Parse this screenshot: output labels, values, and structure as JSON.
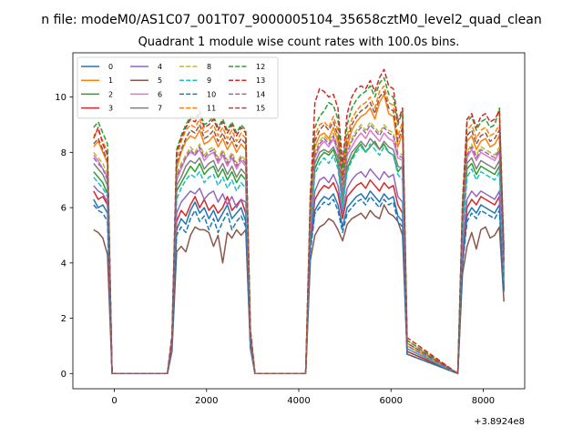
{
  "chart_data": {
    "type": "line",
    "suptitle": "n file: modeM0/AS1C07_001T07_9000005104_35658cztM0_level2_quad_clean",
    "title": "Quadrant 1 module wise count rates with 100.0s bins.",
    "xlabel": "",
    "ylabel": "",
    "x_offset_label": "+3.8924e8",
    "xlim": [
      -900,
      8900
    ],
    "ylim": [
      -0.55,
      11.6
    ],
    "x_ticks": [
      0,
      2000,
      4000,
      6000,
      8000
    ],
    "y_ticks": [
      0,
      2,
      4,
      6,
      8,
      10
    ],
    "grid": false,
    "legend": {
      "position": "top-left",
      "columns": 4
    },
    "x": [
      -450,
      -350,
      -250,
      -150,
      -50,
      1150,
      1250,
      1350,
      1450,
      1550,
      1650,
      1750,
      1850,
      1950,
      2050,
      2150,
      2250,
      2350,
      2450,
      2550,
      2650,
      2750,
      2850,
      2950,
      3050,
      3150,
      4150,
      4250,
      4350,
      4450,
      4550,
      4650,
      4750,
      4850,
      4950,
      5050,
      5150,
      5250,
      5350,
      5450,
      5550,
      5650,
      5750,
      5850,
      5950,
      6050,
      6150,
      6250,
      6350,
      7450,
      7550,
      7650,
      7750,
      7850,
      7950,
      8050,
      8150,
      8250,
      8350,
      8450
    ],
    "series": [
      {
        "name": "0",
        "color": "#1f77b4",
        "dash": "solid",
        "values": [
          6.3,
          6.0,
          6.1,
          5.8,
          0.0,
          0.0,
          1.0,
          5.2,
          5.6,
          5.4,
          5.9,
          6.2,
          5.8,
          6.0,
          5.6,
          5.9,
          5.5,
          5.8,
          6.1,
          5.6,
          5.8,
          6.0,
          5.5,
          1.0,
          0.0,
          0.0,
          0.0,
          4.6,
          5.9,
          6.2,
          6.4,
          6.3,
          6.5,
          6.1,
          5.3,
          6.0,
          6.2,
          6.4,
          6.5,
          6.3,
          6.6,
          6.4,
          6.2,
          6.5,
          6.3,
          6.4,
          5.7,
          5.5,
          0.8,
          0.0,
          4.0,
          5.7,
          6.0,
          5.8,
          6.1,
          6.0,
          5.9,
          5.8,
          6.1,
          3.0
        ]
      },
      {
        "name": "1",
        "color": "#ff7f0e",
        "dash": "solid",
        "values": [
          8.2,
          8.4,
          8.0,
          7.6,
          0.0,
          0.0,
          1.2,
          7.4,
          8.0,
          8.4,
          8.6,
          8.5,
          8.8,
          8.3,
          8.4,
          8.6,
          8.2,
          8.5,
          8.1,
          8.4,
          8.0,
          8.3,
          8.1,
          1.4,
          0.0,
          0.0,
          0.0,
          6.0,
          8.2,
          8.6,
          8.7,
          8.5,
          8.9,
          8.4,
          6.8,
          8.2,
          8.8,
          9.1,
          9.3,
          9.4,
          9.6,
          9.2,
          9.8,
          10.1,
          9.4,
          9.3,
          8.2,
          8.7,
          1.1,
          0.0,
          5.6,
          8.4,
          8.6,
          8.1,
          8.4,
          8.5,
          8.2,
          8.3,
          8.6,
          4.0
        ]
      },
      {
        "name": "2",
        "color": "#2ca02c",
        "dash": "solid",
        "values": [
          7.3,
          7.1,
          6.9,
          6.5,
          0.0,
          0.0,
          1.1,
          6.6,
          6.9,
          7.2,
          7.5,
          7.3,
          7.6,
          7.2,
          7.4,
          7.5,
          7.1,
          7.4,
          7.0,
          7.3,
          6.9,
          7.2,
          7.0,
          1.2,
          0.0,
          0.0,
          0.0,
          5.3,
          7.4,
          7.8,
          8.0,
          7.9,
          8.1,
          7.6,
          6.1,
          7.4,
          7.8,
          8.1,
          8.3,
          8.0,
          8.2,
          8.4,
          8.1,
          8.3,
          8.0,
          7.9,
          7.3,
          7.5,
          0.9,
          0.0,
          5.1,
          7.4,
          7.6,
          7.2,
          7.5,
          7.4,
          7.3,
          7.2,
          7.5,
          3.5
        ]
      },
      {
        "name": "3",
        "color": "#d62728",
        "dash": "solid",
        "values": [
          6.6,
          6.3,
          6.4,
          6.1,
          0.0,
          0.0,
          1.0,
          5.5,
          5.9,
          5.7,
          6.1,
          6.4,
          6.0,
          6.3,
          5.9,
          6.1,
          5.8,
          6.0,
          6.4,
          5.9,
          6.1,
          6.3,
          5.8,
          1.0,
          0.0,
          0.0,
          0.0,
          4.9,
          6.3,
          6.6,
          6.8,
          6.7,
          6.9,
          6.5,
          5.6,
          6.4,
          6.6,
          6.8,
          6.9,
          6.7,
          7.0,
          6.8,
          6.6,
          6.9,
          6.7,
          6.8,
          6.1,
          5.8,
          0.8,
          0.0,
          4.2,
          6.0,
          6.3,
          6.1,
          6.4,
          6.3,
          6.2,
          6.1,
          6.4,
          3.1
        ]
      },
      {
        "name": "4",
        "color": "#9467bd",
        "dash": "solid",
        "values": [
          6.8,
          6.6,
          6.5,
          6.2,
          0.0,
          0.0,
          1.0,
          5.8,
          6.2,
          6.4,
          6.6,
          6.5,
          6.7,
          6.3,
          6.5,
          6.6,
          6.2,
          6.5,
          6.1,
          6.4,
          6.0,
          6.3,
          6.2,
          1.1,
          0.0,
          0.0,
          0.0,
          5.0,
          6.6,
          7.0,
          7.1,
          6.9,
          7.2,
          6.8,
          5.8,
          6.7,
          7.0,
          7.2,
          7.3,
          7.1,
          7.4,
          7.2,
          7.0,
          7.3,
          7.1,
          7.2,
          6.4,
          6.2,
          0.9,
          0.0,
          4.5,
          6.3,
          6.6,
          6.4,
          6.6,
          6.5,
          6.4,
          6.3,
          6.6,
          3.2
        ]
      },
      {
        "name": "5",
        "color": "#8c564b",
        "dash": "solid",
        "values": [
          5.2,
          5.1,
          4.9,
          4.3,
          0.0,
          0.0,
          0.8,
          4.4,
          4.6,
          4.4,
          5.0,
          5.3,
          5.2,
          5.2,
          5.1,
          4.6,
          5.0,
          4.0,
          5.1,
          4.9,
          5.2,
          5.0,
          5.2,
          0.9,
          0.0,
          0.0,
          0.0,
          4.1,
          5.0,
          5.3,
          5.4,
          5.6,
          5.5,
          5.2,
          4.8,
          5.4,
          5.6,
          5.7,
          5.8,
          5.6,
          5.9,
          5.7,
          5.6,
          6.1,
          5.8,
          5.7,
          5.5,
          5.0,
          0.7,
          0.0,
          3.6,
          4.6,
          5.1,
          4.5,
          5.2,
          5.3,
          4.9,
          5.0,
          5.3,
          2.6
        ]
      },
      {
        "name": "6",
        "color": "#e377c2",
        "dash": "solid",
        "values": [
          7.9,
          7.7,
          7.4,
          7.1,
          0.0,
          0.0,
          1.1,
          7.0,
          7.4,
          7.8,
          8.0,
          7.9,
          8.1,
          7.7,
          7.9,
          8.0,
          7.6,
          7.9,
          7.5,
          7.8,
          7.4,
          7.7,
          7.5,
          1.2,
          0.0,
          0.0,
          0.0,
          5.6,
          7.8,
          8.2,
          8.4,
          8.2,
          8.5,
          8.0,
          6.5,
          7.9,
          8.2,
          8.5,
          8.7,
          8.5,
          8.8,
          8.6,
          8.4,
          8.7,
          8.5,
          8.4,
          7.8,
          7.7,
          1.0,
          0.0,
          5.4,
          7.8,
          8.1,
          7.7,
          8.0,
          7.9,
          7.8,
          7.7,
          8.0,
          3.8
        ]
      },
      {
        "name": "7",
        "color": "#7f7f7f",
        "dash": "solid",
        "values": [
          7.6,
          7.4,
          7.2,
          6.8,
          0.0,
          0.0,
          1.1,
          6.8,
          7.1,
          7.5,
          7.7,
          7.6,
          7.8,
          7.4,
          7.6,
          7.7,
          7.3,
          7.6,
          7.2,
          7.5,
          7.1,
          7.4,
          7.2,
          1.2,
          0.0,
          0.0,
          0.0,
          5.5,
          7.6,
          8.0,
          8.1,
          8.0,
          8.2,
          7.8,
          6.3,
          7.6,
          8.0,
          8.2,
          8.4,
          8.2,
          8.5,
          8.3,
          8.1,
          8.4,
          8.2,
          8.1,
          7.5,
          7.4,
          0.9,
          0.0,
          5.2,
          7.6,
          7.8,
          7.4,
          7.7,
          7.6,
          7.5,
          7.4,
          7.7,
          3.6
        ]
      },
      {
        "name": "8",
        "color": "#bcbd22",
        "dash": "dashed",
        "values": [
          8.0,
          7.8,
          7.6,
          7.2,
          0.0,
          0.0,
          1.1,
          7.2,
          7.6,
          7.9,
          8.2,
          8.0,
          8.3,
          7.9,
          8.1,
          8.2,
          7.8,
          8.1,
          7.7,
          8.0,
          7.6,
          7.9,
          7.7,
          1.3,
          0.0,
          0.0,
          0.0,
          5.8,
          8.0,
          8.4,
          8.6,
          8.4,
          8.7,
          8.2,
          6.7,
          8.1,
          8.5,
          8.8,
          9.0,
          8.8,
          9.1,
          8.9,
          8.7,
          9.0,
          8.8,
          8.7,
          8.0,
          7.9,
          1.0,
          0.0,
          5.5,
          8.0,
          8.3,
          7.9,
          8.2,
          8.1,
          8.0,
          7.9,
          8.2,
          3.9
        ]
      },
      {
        "name": "9",
        "color": "#17becf",
        "dash": "dashed",
        "values": [
          7.1,
          6.9,
          6.7,
          6.4,
          0.0,
          0.0,
          1.0,
          6.3,
          6.7,
          7.0,
          7.2,
          7.1,
          7.3,
          6.9,
          7.1,
          7.2,
          6.8,
          7.1,
          6.7,
          7.0,
          6.6,
          6.9,
          6.7,
          1.1,
          0.0,
          0.0,
          0.0,
          5.2,
          7.2,
          7.6,
          7.8,
          7.6,
          7.9,
          7.4,
          6.0,
          7.3,
          7.7,
          8.0,
          8.2,
          8.0,
          8.3,
          8.1,
          7.9,
          8.2,
          8.0,
          7.9,
          7.2,
          7.0,
          0.9,
          0.0,
          4.8,
          7.1,
          7.4,
          7.0,
          7.3,
          7.2,
          7.1,
          7.0,
          7.3,
          3.4
        ]
      },
      {
        "name": "10",
        "color": "#1f77b4",
        "dash": "dashed",
        "values": [
          6.1,
          5.9,
          5.8,
          5.5,
          0.0,
          0.0,
          0.9,
          5.0,
          5.3,
          5.1,
          5.6,
          5.9,
          5.5,
          5.7,
          5.2,
          5.6,
          5.1,
          5.5,
          5.8,
          5.2,
          5.5,
          5.7,
          5.3,
          1.0,
          0.0,
          0.0,
          0.0,
          4.4,
          5.8,
          6.0,
          6.2,
          6.1,
          6.3,
          5.9,
          5.1,
          5.8,
          6.0,
          6.2,
          6.3,
          6.1,
          6.4,
          6.2,
          6.0,
          6.3,
          6.1,
          6.2,
          5.5,
          5.3,
          0.7,
          0.0,
          3.9,
          5.5,
          5.8,
          5.6,
          5.9,
          5.8,
          5.7,
          5.6,
          5.9,
          2.9
        ]
      },
      {
        "name": "11",
        "color": "#ff7f0e",
        "dash": "dashed",
        "values": [
          8.6,
          8.8,
          8.4,
          8.0,
          0.0,
          0.0,
          1.3,
          7.8,
          8.4,
          8.8,
          9.0,
          8.9,
          9.2,
          8.7,
          8.8,
          9.0,
          8.6,
          8.9,
          8.5,
          8.8,
          8.4,
          8.7,
          8.5,
          1.5,
          0.0,
          0.0,
          0.0,
          6.3,
          8.6,
          9.0,
          9.1,
          8.9,
          9.3,
          8.8,
          7.1,
          8.6,
          9.2,
          9.5,
          9.7,
          9.8,
          10.0,
          9.6,
          10.2,
          10.4,
          9.8,
          9.7,
          8.6,
          9.1,
          1.2,
          0.0,
          5.9,
          8.8,
          9.0,
          8.5,
          8.8,
          8.9,
          8.6,
          8.7,
          9.0,
          4.2
        ]
      },
      {
        "name": "12",
        "color": "#2ca02c",
        "dash": "dashed",
        "values": [
          8.9,
          9.1,
          8.7,
          8.3,
          0.0,
          0.0,
          1.3,
          8.1,
          8.6,
          9.0,
          9.3,
          9.2,
          9.5,
          9.0,
          9.1,
          9.3,
          8.9,
          9.2,
          8.8,
          9.1,
          8.7,
          9.0,
          8.8,
          1.5,
          0.0,
          0.0,
          0.0,
          6.5,
          8.9,
          9.3,
          9.5,
          9.8,
          9.7,
          9.2,
          7.4,
          9.0,
          9.6,
          9.9,
          10.1,
          10.2,
          10.4,
          10.0,
          10.5,
          10.7,
          10.1,
          10.0,
          9.0,
          9.5,
          1.2,
          0.0,
          6.1,
          9.1,
          9.3,
          8.8,
          9.1,
          9.2,
          8.9,
          9.0,
          9.6,
          4.4
        ]
      },
      {
        "name": "13",
        "color": "#d62728",
        "dash": "dashed",
        "values": [
          8.5,
          8.9,
          8.3,
          7.9,
          0.0,
          0.0,
          1.4,
          8.0,
          8.5,
          8.9,
          9.2,
          9.1,
          9.4,
          8.9,
          9.0,
          9.2,
          8.8,
          9.1,
          8.7,
          9.0,
          8.6,
          8.9,
          8.7,
          1.6,
          0.0,
          0.0,
          0.0,
          6.4,
          9.8,
          10.3,
          10.2,
          10.0,
          10.1,
          9.6,
          7.6,
          9.4,
          10.0,
          10.3,
          10.4,
          10.3,
          10.6,
          10.2,
          10.7,
          11.0,
          10.4,
          10.3,
          9.1,
          9.6,
          1.3,
          0.0,
          6.2,
          9.2,
          9.4,
          8.9,
          9.3,
          9.4,
          9.1,
          9.2,
          9.5,
          4.5
        ]
      },
      {
        "name": "14",
        "color": "#9467bd",
        "dash": "dashed",
        "values": [
          7.8,
          7.6,
          7.4,
          7.0,
          0.0,
          0.0,
          1.1,
          7.1,
          7.5,
          7.8,
          8.1,
          7.9,
          8.2,
          7.8,
          8.0,
          8.1,
          7.7,
          8.0,
          7.6,
          7.9,
          7.5,
          7.8,
          7.6,
          1.3,
          0.0,
          0.0,
          0.0,
          5.7,
          7.9,
          8.3,
          8.5,
          8.3,
          8.6,
          8.1,
          6.6,
          8.0,
          8.4,
          8.7,
          8.9,
          8.7,
          9.0,
          8.8,
          8.6,
          8.9,
          8.7,
          8.6,
          7.9,
          7.8,
          1.0,
          0.0,
          5.4,
          7.9,
          8.2,
          7.8,
          8.1,
          8.0,
          7.9,
          7.8,
          8.1,
          3.8
        ]
      },
      {
        "name": "15",
        "color": "#8c564b",
        "dash": "dashed",
        "values": [
          8.3,
          8.5,
          8.1,
          7.7,
          0.0,
          0.0,
          1.2,
          7.6,
          8.1,
          8.5,
          8.8,
          8.7,
          9.0,
          8.5,
          8.6,
          8.8,
          8.4,
          8.7,
          8.3,
          8.6,
          8.2,
          8.5,
          8.3,
          1.4,
          0.0,
          0.0,
          0.0,
          6.1,
          8.4,
          8.8,
          9.0,
          8.8,
          9.1,
          8.6,
          7.0,
          8.4,
          9.0,
          9.3,
          9.5,
          9.6,
          9.8,
          9.4,
          10.0,
          10.2,
          9.6,
          9.5,
          8.4,
          8.9,
          1.1,
          0.0,
          5.8,
          8.6,
          8.8,
          8.3,
          8.6,
          8.7,
          8.4,
          8.5,
          8.8,
          4.1
        ]
      }
    ]
  }
}
